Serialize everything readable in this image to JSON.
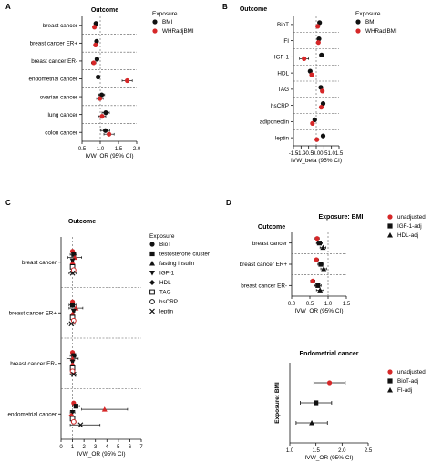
{
  "chart_data": [
    {
      "panel": "A",
      "type": "scatter",
      "subtype": "forest",
      "title": "Outcome",
      "xlabel": "IVW_OR (95% CI)",
      "xlim": [
        0.5,
        2.0
      ],
      "xticks": [
        0.5,
        1.0,
        1.5,
        2.0
      ],
      "reference_line": 1.0,
      "categories": [
        "breast cancer",
        "breast cancer ER+",
        "breast cancer ER-",
        "endometrial cancer",
        "ovarian cancer",
        "lung cancer",
        "colon cancer"
      ],
      "legend_title": "Exposure",
      "legend_position": "right",
      "series": [
        {
          "name": "BMI",
          "marker": "circle",
          "color": "#111111",
          "values": [
            0.88,
            0.9,
            0.91,
            0.94,
            1.04,
            1.15,
            1.14
          ],
          "lower": [
            0.85,
            0.87,
            0.86,
            0.9,
            0.96,
            1.05,
            1.02
          ],
          "upper": [
            0.91,
            0.93,
            0.96,
            0.98,
            1.12,
            1.25,
            1.26
          ]
        },
        {
          "name": "WHRadjBMI",
          "marker": "circle",
          "color": "#d62728",
          "values": [
            0.84,
            0.87,
            0.82,
            1.74,
            0.99,
            1.05,
            1.24
          ],
          "lower": [
            0.8,
            0.83,
            0.76,
            1.6,
            0.9,
            0.95,
            1.1
          ],
          "upper": [
            0.88,
            0.91,
            0.88,
            1.88,
            1.08,
            1.15,
            1.38
          ]
        }
      ]
    },
    {
      "panel": "B",
      "type": "scatter",
      "subtype": "forest",
      "title": "Outcome",
      "xlabel": "IVW_beta (95% CI)",
      "xlim": [
        -1.5,
        1.5
      ],
      "xticks": [
        -1.5,
        -1.0,
        -0.5,
        0.0,
        0.5,
        1.0,
        1.5
      ],
      "reference_line": 0.0,
      "categories": [
        "BioT",
        "FI",
        "IGF-1",
        "HDL",
        "TAG",
        "hsCRP",
        "adiponectin",
        "leptin"
      ],
      "legend_title": "Exposure",
      "legend_position": "right",
      "series": [
        {
          "name": "BMI",
          "marker": "circle",
          "color": "#111111",
          "values": [
            0.22,
            0.18,
            0.35,
            -0.4,
            0.3,
            0.45,
            -0.1,
            0.45
          ],
          "lower": [
            0.15,
            0.12,
            0.22,
            -0.48,
            0.22,
            0.38,
            -0.18,
            0.38
          ],
          "upper": [
            0.29,
            0.24,
            0.48,
            -0.32,
            0.38,
            0.52,
            -0.02,
            0.52
          ]
        },
        {
          "name": "WHRadjBMI",
          "marker": "circle",
          "color": "#d62728",
          "values": [
            0.1,
            0.14,
            -0.8,
            -0.3,
            0.4,
            0.33,
            -0.25,
            0.04
          ],
          "lower": [
            0.02,
            0.06,
            -1.1,
            -0.4,
            0.3,
            0.24,
            -0.35,
            -0.06
          ],
          "upper": [
            0.18,
            0.22,
            -0.5,
            -0.2,
            0.5,
            0.42,
            -0.15,
            0.14
          ]
        }
      ]
    },
    {
      "panel": "C",
      "type": "scatter",
      "subtype": "forest",
      "title": "Outcome",
      "xlabel": "IVW_OR (95% CI)",
      "xlim": [
        0,
        7
      ],
      "xticks": [
        0,
        1,
        2,
        3,
        4,
        5,
        6,
        7
      ],
      "reference_line": 1,
      "categories": [
        "breast cancer",
        "breast cancer ER+",
        "breast cancer ER-",
        "endometrial cancer"
      ],
      "legend_title": "Exposure",
      "legend_position": "right",
      "series": [
        {
          "name": "BioT",
          "marker": "circle",
          "values": [
            1.0,
            1.0,
            1.0,
            1.1
          ],
          "lower": [
            0.9,
            0.9,
            0.9,
            1.0
          ],
          "upper": [
            1.1,
            1.1,
            1.1,
            1.2
          ]
        },
        {
          "name": "testosterone cluster",
          "marker": "square",
          "values": [
            1.1,
            1.0,
            1.1,
            1.3
          ],
          "lower": [
            0.8,
            0.7,
            0.8,
            1.0
          ],
          "upper": [
            1.4,
            1.3,
            1.4,
            1.6
          ]
        },
        {
          "name": "fasting insulin",
          "marker": "triangle",
          "values": [
            1.2,
            1.3,
            1.0,
            3.8
          ],
          "lower": [
            0.6,
            0.7,
            0.5,
            1.8
          ],
          "upper": [
            1.8,
            1.9,
            1.5,
            5.8
          ]
        },
        {
          "name": "IGF-1",
          "marker": "triangle-down",
          "values": [
            1.0,
            1.1,
            1.0,
            1.0
          ],
          "lower": [
            0.9,
            1.0,
            0.9,
            0.8
          ],
          "upper": [
            1.1,
            1.2,
            1.1,
            1.2
          ]
        },
        {
          "name": "HDL",
          "marker": "diamond",
          "values": [
            1.0,
            1.0,
            1.0,
            0.9
          ],
          "lower": [
            0.9,
            0.9,
            0.9,
            0.8
          ],
          "upper": [
            1.1,
            1.1,
            1.1,
            1.0
          ]
        },
        {
          "name": "TAG",
          "marker": "open-square",
          "values": [
            1.0,
            1.0,
            1.0,
            1.0
          ],
          "lower": [
            0.9,
            0.9,
            0.9,
            0.9
          ],
          "upper": [
            1.1,
            1.1,
            1.1,
            1.1
          ]
        },
        {
          "name": "hsCRP",
          "marker": "open-circle",
          "values": [
            1.1,
            1.1,
            1.0,
            1.1
          ],
          "lower": [
            1.0,
            1.0,
            0.9,
            0.9
          ],
          "upper": [
            1.2,
            1.2,
            1.1,
            1.3
          ]
        },
        {
          "name": "leptin",
          "marker": "x",
          "values": [
            1.0,
            0.9,
            1.1,
            1.7
          ],
          "lower": [
            0.7,
            0.6,
            0.8,
            0.8
          ],
          "upper": [
            1.3,
            1.2,
            1.4,
            3.4
          ]
        }
      ]
    },
    {
      "panel": "D",
      "type": "scatter",
      "subtype": "forest",
      "title": "Exposure: BMI",
      "subtitle": "Outcome",
      "xlabel": "IVW_OR (95% CI)",
      "xlim": [
        0.0,
        1.5
      ],
      "xticks": [
        0.0,
        0.5,
        1.0,
        1.5
      ],
      "reference_line": 1.0,
      "categories": [
        "breast cancer",
        "breast cancer ER+",
        "breast cancer ER-"
      ],
      "legend_position": "right",
      "series": [
        {
          "name": "unadjusted",
          "marker": "circle",
          "values": [
            0.7,
            0.68,
            0.58
          ],
          "lower": [
            0.64,
            0.62,
            0.52
          ],
          "upper": [
            0.76,
            0.74,
            0.64
          ]
        },
        {
          "name": "IGF-1-adj",
          "marker": "square",
          "values": [
            0.76,
            0.8,
            0.72
          ],
          "lower": [
            0.68,
            0.72,
            0.63
          ],
          "upper": [
            0.84,
            0.88,
            0.81
          ]
        },
        {
          "name": "HDL-adj",
          "marker": "triangle",
          "values": [
            0.86,
            0.88,
            0.78
          ],
          "lower": [
            0.78,
            0.8,
            0.68
          ],
          "upper": [
            0.94,
            0.96,
            0.88
          ]
        }
      ]
    },
    {
      "panel": "D-lower",
      "type": "scatter",
      "subtype": "forest",
      "title": "Endometrial cancer",
      "xlabel": "IVW_OR (95% CI)",
      "ylabel": "Exposure: BMI",
      "xlim": [
        1.0,
        2.5
      ],
      "xticks": [
        1.0,
        1.5,
        2.0,
        2.5
      ],
      "legend_position": "right",
      "series": [
        {
          "name": "unadjusted",
          "marker": "circle",
          "values": [
            1.76
          ],
          "lower": [
            1.46
          ],
          "upper": [
            2.06
          ]
        },
        {
          "name": "BioT-adj",
          "marker": "square",
          "values": [
            1.5
          ],
          "lower": [
            1.2
          ],
          "upper": [
            1.8
          ]
        },
        {
          "name": "FI-adj",
          "marker": "triangle",
          "values": [
            1.42
          ],
          "lower": [
            1.12
          ],
          "upper": [
            1.72
          ]
        }
      ]
    }
  ],
  "panel_letters": [
    "A",
    "B",
    "C",
    "D"
  ],
  "colors": {
    "black": "#111111",
    "red": "#d62728",
    "grid": "#777777"
  }
}
